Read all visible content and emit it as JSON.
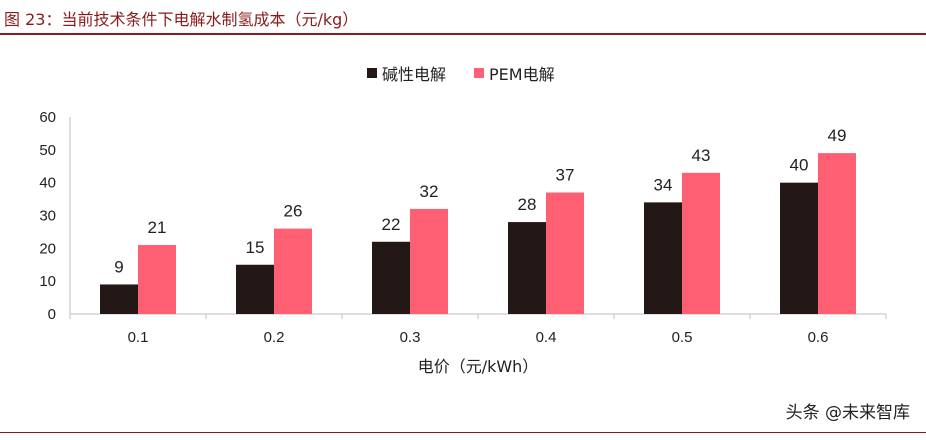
{
  "figure": {
    "title": "图 23：当前技术条件下电解水制氢成本（元/kg）",
    "watermark": "头条 @未来智库"
  },
  "colors": {
    "accent": "#8b1a1a",
    "series_alkaline": "#231815",
    "series_pem": "#ff5f73"
  },
  "chart_data": {
    "type": "bar",
    "title": "",
    "xlabel": "电价（元/kWh）",
    "ylabel": "",
    "categories": [
      "0.1",
      "0.2",
      "0.3",
      "0.4",
      "0.5",
      "0.6"
    ],
    "series": [
      {
        "name": "碱性电解",
        "values": [
          9,
          15,
          22,
          28,
          34,
          40
        ],
        "color": "#231815"
      },
      {
        "name": "PEM电解",
        "values": [
          21,
          26,
          32,
          37,
          43,
          49
        ],
        "color": "#ff5f73"
      }
    ],
    "ylim": [
      0,
      60
    ],
    "yticks": [
      0,
      10,
      20,
      30,
      40,
      50,
      60
    ],
    "grid": false,
    "legend_position": "top-center",
    "data_labels": true
  }
}
